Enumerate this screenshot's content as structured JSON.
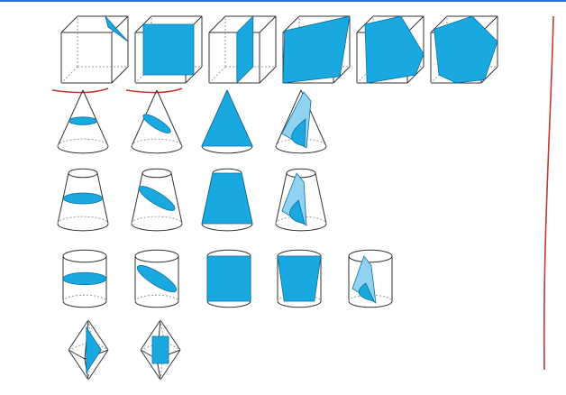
{
  "page": {
    "caption": "",
    "colors": {
      "fill": "#1aa8e0",
      "fill_light": "#8fd3f0",
      "edge": "#333333",
      "hidden_edge": "#9a9a9a",
      "annotation_red": "#c0392b",
      "top_border": "#2f6fd1"
    }
  },
  "rows": [
    {
      "solid": "cube",
      "sections": [
        "corner-triangle",
        "parallel-square",
        "diagonal-rectangle",
        "oblique-quadrilateral",
        "pentagon",
        "hexagon"
      ],
      "underlined": [
        0,
        1
      ]
    },
    {
      "solid": "cone",
      "sections": [
        "circle",
        "ellipse",
        "axial-triangle",
        "parabola"
      ]
    },
    {
      "solid": "frustum",
      "sections": [
        "circle",
        "ellipse",
        "axial-trapezoid",
        "curved-section"
      ]
    },
    {
      "solid": "cylinder",
      "sections": [
        "circle",
        "ellipse",
        "axial-rectangle",
        "trapezoid",
        "curved-section"
      ]
    },
    {
      "solid": "bipyramid",
      "sections": [
        "triangle",
        "rectangle"
      ]
    }
  ]
}
